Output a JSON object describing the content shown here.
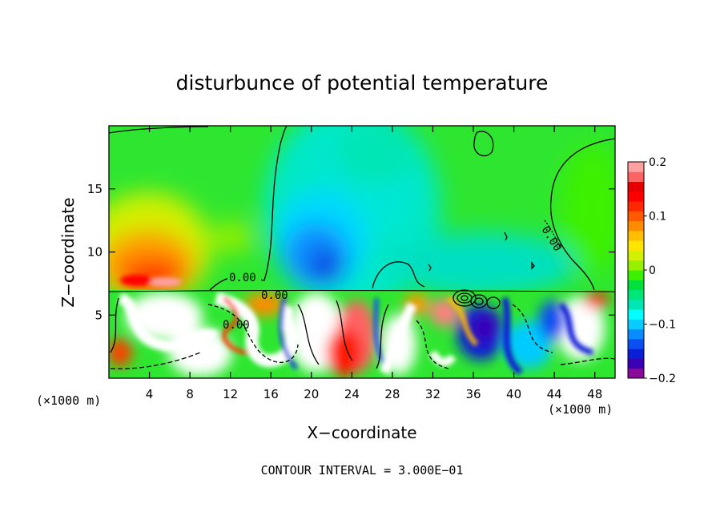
{
  "chart_data": {
    "type": "heatmap",
    "title": "disturbunce of potential temperature",
    "xlabel": "X−coordinate",
    "ylabel": "Z−coordinate",
    "x_unit": "(×1000 m)",
    "z_unit": "(×1000 m)",
    "xlim": [
      0,
      50
    ],
    "ylim": [
      0,
      20
    ],
    "x_ticks": [
      4,
      8,
      12,
      16,
      20,
      24,
      28,
      32,
      36,
      40,
      44,
      48
    ],
    "y_ticks": [
      5,
      10,
      15
    ],
    "colorbar": {
      "min": -0.2,
      "max": 0.2,
      "tick_values": [
        0.2,
        0.1,
        0,
        -0.1,
        -0.2
      ],
      "tick_labels": [
        "0.2",
        "0.1",
        "0",
        "−0.1",
        "−0.2"
      ],
      "colors": [
        "#8a0a9a",
        "#3a00b4",
        "#0a1ed6",
        "#0a50f0",
        "#0a8cff",
        "#0acbff",
        "#00ffff",
        "#00e6b4",
        "#00e678",
        "#00e03c",
        "#3cf000",
        "#96f000",
        "#d2f000",
        "#ffe600",
        "#ffbe00",
        "#ff8c00",
        "#ff5a00",
        "#ff2800",
        "#ff0000",
        "#e60000",
        "#ff6464",
        "#ffa0a0"
      ]
    },
    "contour_labels": [
      "0.00",
      "0.00",
      "0.00",
      "0.00"
    ],
    "contour_interval_text": "CONTOUR INTERVAL = 3.000E−01"
  }
}
